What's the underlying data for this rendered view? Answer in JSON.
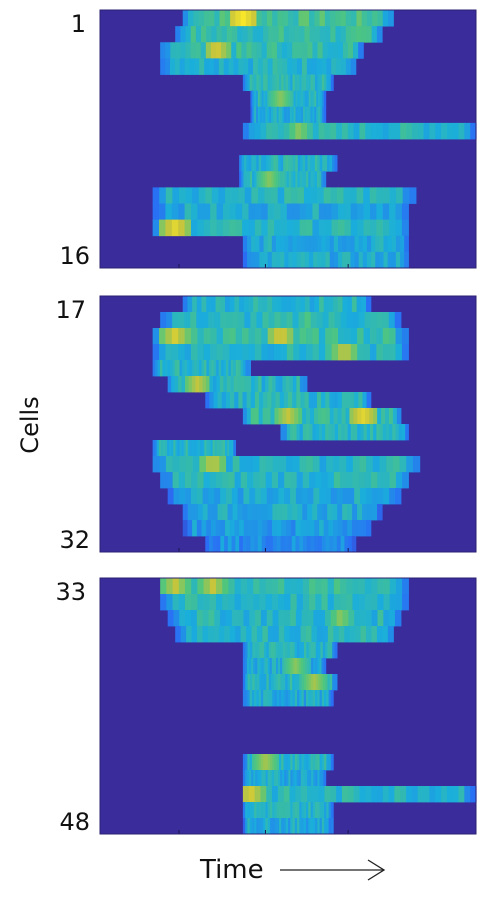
{
  "chart_data": {
    "type": "heatmap",
    "title": "",
    "xlabel": "Time",
    "ylabel": "Cells",
    "colormap": [
      "#3e26a8",
      "#2a6ef5",
      "#1aaedb",
      "#50c67d",
      "#c7c53b",
      "#f9e72a"
    ],
    "background": "#3a2c9b",
    "panels": [
      {
        "first_cell": 1,
        "last_cell": 16,
        "first_label": "1",
        "last_label": "16",
        "rows": [
          {
            "cell": 1,
            "start": 0.22,
            "end": 0.78,
            "level": 0.55,
            "peaks": [
              {
                "at": 0.38,
                "level": 1.0
              }
            ]
          },
          {
            "cell": 2,
            "start": 0.2,
            "end": 0.75,
            "level": 0.5,
            "peaks": []
          },
          {
            "cell": 3,
            "start": 0.16,
            "end": 0.7,
            "level": 0.5,
            "peaks": [
              {
                "at": 0.31,
                "level": 0.85
              }
            ]
          },
          {
            "cell": 4,
            "start": 0.16,
            "end": 0.68,
            "level": 0.45,
            "peaks": []
          },
          {
            "cell": 5,
            "start": 0.38,
            "end": 0.62,
            "level": 0.45,
            "peaks": []
          },
          {
            "cell": 6,
            "start": 0.4,
            "end": 0.6,
            "level": 0.45,
            "peaks": [
              {
                "at": 0.48,
                "level": 0.7
              }
            ]
          },
          {
            "cell": 7,
            "start": 0.4,
            "end": 0.6,
            "level": 0.4,
            "peaks": []
          },
          {
            "cell": 8,
            "start": 0.38,
            "end": 1.0,
            "level": 0.45,
            "peaks": [
              {
                "at": 0.53,
                "level": 0.7
              }
            ]
          },
          {
            "cell": 9,
            "start": 0.0,
            "end": 0.0,
            "level": 0.0,
            "peaks": []
          },
          {
            "cell": 10,
            "start": 0.37,
            "end": 0.63,
            "level": 0.45,
            "peaks": []
          },
          {
            "cell": 11,
            "start": 0.37,
            "end": 0.6,
            "level": 0.45,
            "peaks": [
              {
                "at": 0.45,
                "level": 0.7
              }
            ]
          },
          {
            "cell": 12,
            "start": 0.14,
            "end": 0.84,
            "level": 0.45,
            "peaks": []
          },
          {
            "cell": 13,
            "start": 0.14,
            "end": 0.82,
            "level": 0.4,
            "peaks": []
          },
          {
            "cell": 14,
            "start": 0.14,
            "end": 0.82,
            "level": 0.45,
            "peaks": [
              {
                "at": 0.2,
                "level": 0.9
              }
            ]
          },
          {
            "cell": 15,
            "start": 0.38,
            "end": 0.82,
            "level": 0.4,
            "peaks": []
          },
          {
            "cell": 16,
            "start": 0.38,
            "end": 0.82,
            "level": 0.4,
            "peaks": []
          }
        ]
      },
      {
        "first_cell": 17,
        "last_cell": 32,
        "first_label": "17",
        "last_label": "32",
        "rows": [
          {
            "cell": 17,
            "start": 0.22,
            "end": 0.72,
            "level": 0.45,
            "peaks": []
          },
          {
            "cell": 18,
            "start": 0.16,
            "end": 0.8,
            "level": 0.45,
            "peaks": [
              {
                "at": 0.55,
                "level": 0.6
              }
            ]
          },
          {
            "cell": 19,
            "start": 0.14,
            "end": 0.82,
            "level": 0.5,
            "peaks": [
              {
                "at": 0.2,
                "level": 0.85
              },
              {
                "at": 0.48,
                "level": 0.85
              }
            ]
          },
          {
            "cell": 20,
            "start": 0.14,
            "end": 0.82,
            "level": 0.45,
            "peaks": [
              {
                "at": 0.65,
                "level": 0.8
              }
            ]
          },
          {
            "cell": 21,
            "start": 0.14,
            "end": 0.4,
            "level": 0.45,
            "peaks": []
          },
          {
            "cell": 22,
            "start": 0.18,
            "end": 0.55,
            "level": 0.45,
            "peaks": [
              {
                "at": 0.26,
                "level": 0.8
              }
            ]
          },
          {
            "cell": 23,
            "start": 0.28,
            "end": 0.72,
            "level": 0.45,
            "peaks": []
          },
          {
            "cell": 24,
            "start": 0.38,
            "end": 0.8,
            "level": 0.5,
            "peaks": [
              {
                "at": 0.5,
                "level": 0.8
              },
              {
                "at": 0.7,
                "level": 0.9
              }
            ]
          },
          {
            "cell": 25,
            "start": 0.48,
            "end": 0.82,
            "level": 0.45,
            "peaks": []
          },
          {
            "cell": 26,
            "start": 0.14,
            "end": 0.36,
            "level": 0.45,
            "peaks": [
              {
                "at": 0.7,
                "level": 0.85
              }
            ]
          },
          {
            "cell": 27,
            "start": 0.14,
            "end": 0.85,
            "level": 0.45,
            "peaks": [
              {
                "at": 0.3,
                "level": 0.8
              }
            ]
          },
          {
            "cell": 28,
            "start": 0.16,
            "end": 0.82,
            "level": 0.45,
            "peaks": []
          },
          {
            "cell": 29,
            "start": 0.18,
            "end": 0.8,
            "level": 0.4,
            "peaks": []
          },
          {
            "cell": 30,
            "start": 0.22,
            "end": 0.75,
            "level": 0.4,
            "peaks": []
          },
          {
            "cell": 31,
            "start": 0.22,
            "end": 0.72,
            "level": 0.35,
            "peaks": []
          },
          {
            "cell": 32,
            "start": 0.28,
            "end": 0.68,
            "level": 0.3,
            "peaks": []
          }
        ]
      },
      {
        "first_cell": 33,
        "last_cell": 48,
        "first_label": "33",
        "last_label": "48",
        "rows": [
          {
            "cell": 33,
            "start": 0.16,
            "end": 0.82,
            "level": 0.5,
            "peaks": [
              {
                "at": 0.2,
                "level": 0.8
              },
              {
                "at": 0.3,
                "level": 0.8
              }
            ]
          },
          {
            "cell": 34,
            "start": 0.16,
            "end": 0.82,
            "level": 0.45,
            "peaks": []
          },
          {
            "cell": 35,
            "start": 0.18,
            "end": 0.8,
            "level": 0.45,
            "peaks": [
              {
                "at": 0.64,
                "level": 0.7
              }
            ]
          },
          {
            "cell": 36,
            "start": 0.2,
            "end": 0.78,
            "level": 0.45,
            "peaks": []
          },
          {
            "cell": 37,
            "start": 0.38,
            "end": 0.63,
            "level": 0.45,
            "peaks": []
          },
          {
            "cell": 38,
            "start": 0.38,
            "end": 0.6,
            "level": 0.4,
            "peaks": [
              {
                "at": 0.52,
                "level": 0.7
              }
            ]
          },
          {
            "cell": 39,
            "start": 0.38,
            "end": 0.63,
            "level": 0.45,
            "peaks": [
              {
                "at": 0.57,
                "level": 0.75
              }
            ]
          },
          {
            "cell": 40,
            "start": 0.38,
            "end": 0.62,
            "level": 0.4,
            "peaks": []
          },
          {
            "cell": 41,
            "start": 0.0,
            "end": 0.0,
            "level": 0.0,
            "peaks": []
          },
          {
            "cell": 42,
            "start": 0.0,
            "end": 0.0,
            "level": 0.0,
            "peaks": []
          },
          {
            "cell": 43,
            "start": 0.0,
            "end": 0.0,
            "level": 0.0,
            "peaks": []
          },
          {
            "cell": 44,
            "start": 0.38,
            "end": 0.62,
            "level": 0.45,
            "peaks": [
              {
                "at": 0.44,
                "level": 0.75
              }
            ]
          },
          {
            "cell": 45,
            "start": 0.38,
            "end": 0.6,
            "level": 0.4,
            "peaks": []
          },
          {
            "cell": 46,
            "start": 0.38,
            "end": 1.0,
            "level": 0.45,
            "peaks": [
              {
                "at": 0.4,
                "level": 0.85
              }
            ]
          },
          {
            "cell": 47,
            "start": 0.38,
            "end": 0.62,
            "level": 0.45,
            "peaks": []
          },
          {
            "cell": 48,
            "start": 0.38,
            "end": 0.62,
            "level": 0.4,
            "peaks": []
          }
        ]
      }
    ]
  }
}
